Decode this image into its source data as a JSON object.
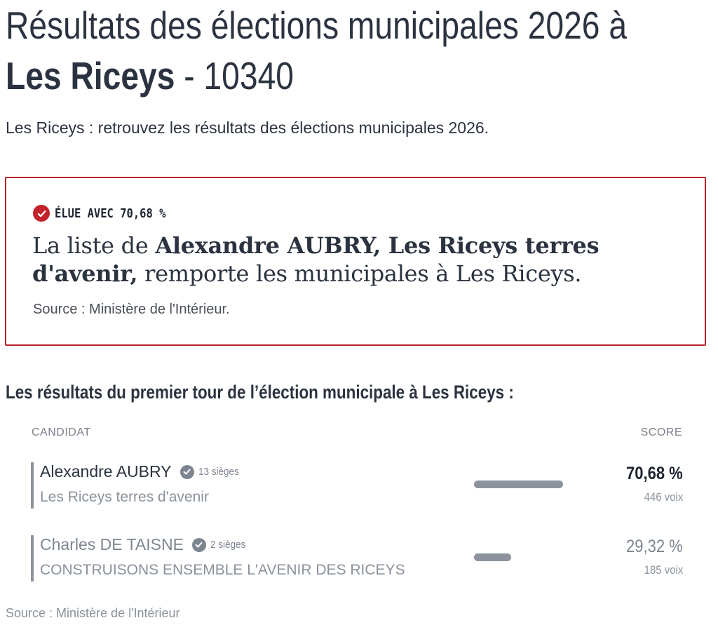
{
  "header": {
    "title_line1": "Résultats des élections municipales 2026 à",
    "commune": "Les Riceys",
    "title_suffix": " - 10340",
    "subtitle": "Les Riceys : retrouvez les résultats des élections municipales 2026."
  },
  "result_box": {
    "elected_label": "ÉLUE AVEC 70,68 %",
    "winner_prefix": "La liste de ",
    "winner_name": "Alexandre AUBRY, Les Riceys terres d'avenir,",
    "winner_suffix": " remporte les municipales à Les Riceys.",
    "source": "Source : Ministère de l'Intérieur.",
    "accent_color": "#c3222b"
  },
  "results": {
    "section_title": "Les résultats du premier tour de l’élection municipale à Les Riceys :",
    "col_candidate": "CANDIDAT",
    "col_score": "SCORE",
    "candidates": [
      {
        "name": "Alexandre AUBRY",
        "seats": "13 sièges",
        "list": "Les Riceys terres d'avenir",
        "score": "70,68 %",
        "votes": "446 voix",
        "share": 0.7068
      },
      {
        "name": "Charles DE TAISNE",
        "seats": "2 sièges",
        "list": "CONSTRUISONS ENSEMBLE L'AVENIR DES RICEYS",
        "score": "29,32 %",
        "votes": "185 voix",
        "share": 0.2932
      }
    ],
    "footer_source": "Source : Ministère de l'Intérieur"
  }
}
